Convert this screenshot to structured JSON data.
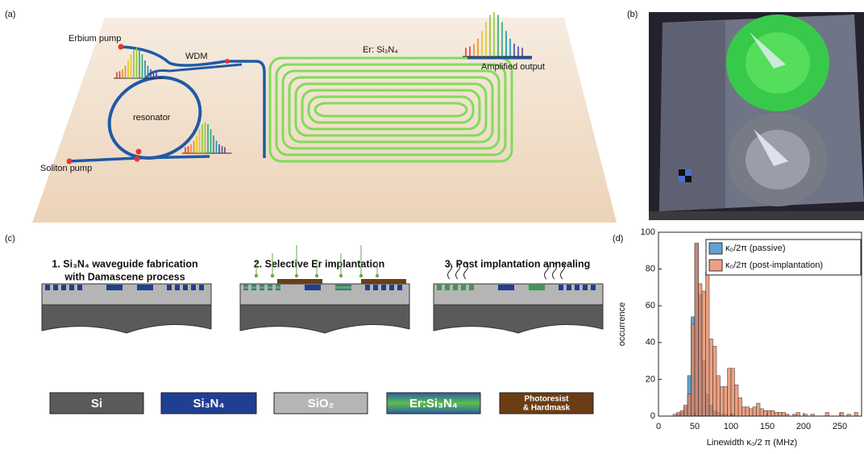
{
  "panel_labels": [
    "(a)",
    "(b)",
    "(c)",
    "(d)"
  ],
  "panel_a": {
    "erbium_pump": "Erbium pump",
    "wdm": "WDM",
    "er_sin": "Er: Si₃N₄",
    "amplified_output": "Amplified output",
    "resonator": "resonator",
    "soliton_pump": "Soliton pump"
  },
  "panel_c": {
    "steps": [
      [
        "1. Si₃N₄ waveguide fabrication",
        "with Damascene process"
      ],
      [
        "2. Selective Er implantation"
      ],
      [
        "3. Post implantation annealing"
      ]
    ],
    "legend": [
      [
        "Si"
      ],
      [
        "Si₃N₄"
      ],
      [
        "SiO₂"
      ],
      [
        "Er:Si₃N₄"
      ],
      [
        "Photoresist",
        "& Hardmask"
      ]
    ]
  },
  "chart_data": {
    "type": "histogram",
    "x_label": "Linewidth κ₀/2 π (MHz)",
    "y_label": "occurrence",
    "bins": [
      20,
      25,
      30,
      35,
      40,
      45,
      50,
      55,
      60,
      65,
      70,
      75,
      80,
      85,
      90,
      95,
      100,
      105,
      110,
      115,
      120,
      125,
      130,
      135,
      140,
      145,
      150,
      155,
      160,
      165,
      170,
      175,
      180,
      185,
      190,
      195,
      200,
      205,
      210,
      215,
      220,
      225,
      230,
      235,
      240,
      245,
      250,
      255,
      260,
      265,
      270,
      275,
      280
    ],
    "series": [
      {
        "name": "κ₀/2π (passive)",
        "color": "#4f98cf",
        "values": [
          0,
          1,
          2,
          5,
          22,
          54,
          94,
          66,
          30,
          12,
          6,
          3,
          2,
          1,
          1,
          0,
          1,
          0,
          0,
          0,
          0,
          0,
          0,
          0,
          0,
          0,
          0,
          0,
          0,
          0,
          0,
          0,
          0,
          0,
          0,
          0,
          0,
          0,
          0,
          0,
          0,
          0,
          0,
          0,
          0,
          0,
          0,
          0,
          0,
          0,
          0,
          0
        ]
      },
      {
        "name": "κ₀/2π (post-implantation)",
        "color": "#e5825a",
        "values": [
          1,
          2,
          3,
          6,
          12,
          50,
          94,
          72,
          68,
          78,
          42,
          38,
          22,
          16,
          16,
          26,
          26,
          17,
          10,
          5,
          5,
          4,
          5,
          7,
          4,
          3,
          3,
          3,
          2,
          2,
          2,
          1,
          0,
          1,
          2,
          0,
          1,
          0,
          1,
          0,
          0,
          0,
          2,
          0,
          0,
          0,
          2,
          0,
          1,
          0,
          2,
          0
        ]
      }
    ],
    "xlim": [
      0,
      280
    ],
    "ylim": [
      0,
      100
    ],
    "xticks": [
      0,
      50,
      100,
      150,
      200,
      250
    ],
    "yticks": [
      0,
      20,
      40,
      60,
      80,
      100
    ],
    "legend": "upper right"
  }
}
